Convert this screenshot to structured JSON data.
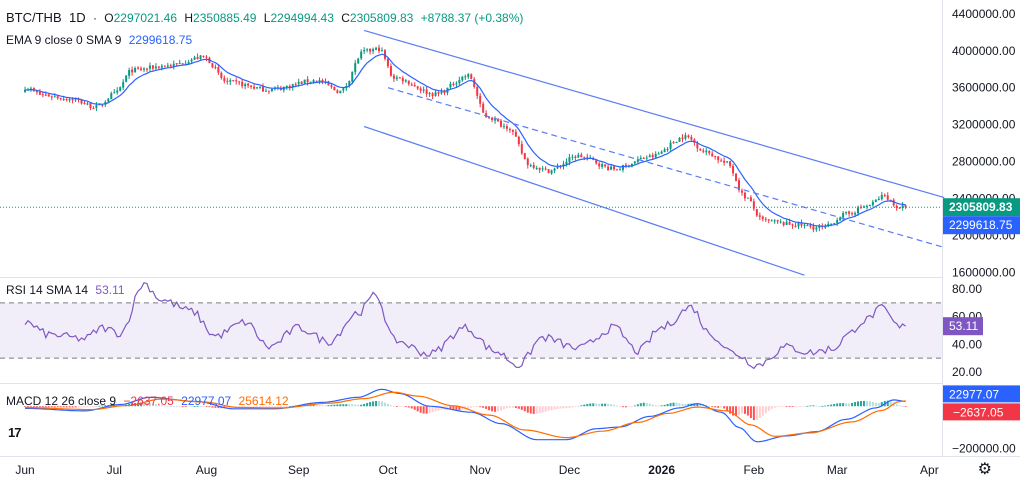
{
  "legend": {
    "symbol": "BTC/THB",
    "interval": "1D",
    "more": "·",
    "o_label": "O",
    "open": "2297021.46",
    "h_label": "H",
    "high": "2350885.49",
    "l_label": "L",
    "low": "2294994.43",
    "c_label": "C",
    "close": "2305809.83",
    "change": "+8788.37 (+0.38%)",
    "ema_label": "EMA 9 close 0 SMA 9",
    "ema_value": "2299618.75"
  },
  "rsi_legend": {
    "label": "RSI 14 SMA 14",
    "value": "53.11"
  },
  "macd_legend": {
    "label": "MACD 12 26 close 9",
    "hist": "−2637.05",
    "macd": "22977.07",
    "signal": "25614.12"
  },
  "logo_text": "17",
  "settings_icon": "gear-icon",
  "colors": {
    "up": "#089981",
    "down": "#f23645",
    "ema": "#2962ff",
    "channel": "#5b7cf5",
    "rsi": "#7e57c2",
    "signal": "#ff6d00"
  },
  "chart_data": [
    {
      "type": "candlestick",
      "title": "BTC/THB 1D",
      "ylim": [
        1550000,
        4550000
      ],
      "y_ticks": [
        1600000,
        2000000,
        2400000,
        2800000,
        3200000,
        3600000,
        4000000,
        4400000
      ],
      "y_tick_labels": [
        "1600000.00",
        "2000000.00",
        "2400000.00",
        "2800000.00",
        "3200000.00",
        "3600000.00",
        "4000000.00",
        "4400000.00"
      ],
      "x_tick_labels": [
        "Jun",
        "Jul",
        "Aug",
        "Sep",
        "Oct",
        "Nov",
        "Dec",
        "2026",
        "Feb",
        "Mar",
        "Apr"
      ],
      "x_tick_days": [
        0,
        30,
        61,
        92,
        122,
        153,
        183,
        214,
        245,
        273,
        304
      ],
      "price_anchors": [
        [
          0,
          3600000
        ],
        [
          6,
          3520000
        ],
        [
          15,
          3480000
        ],
        [
          24,
          3390000
        ],
        [
          30,
          3530000
        ],
        [
          36,
          3790000
        ],
        [
          48,
          3840000
        ],
        [
          60,
          3930000
        ],
        [
          68,
          3660000
        ],
        [
          82,
          3580000
        ],
        [
          98,
          3680000
        ],
        [
          106,
          3560000
        ],
        [
          114,
          3990000
        ],
        [
          119,
          4020000
        ],
        [
          124,
          3710000
        ],
        [
          138,
          3530000
        ],
        [
          149,
          3730000
        ],
        [
          155,
          3290000
        ],
        [
          162,
          3180000
        ],
        [
          170,
          2760000
        ],
        [
          176,
          2700000
        ],
        [
          186,
          2860000
        ],
        [
          198,
          2720000
        ],
        [
          210,
          2850000
        ],
        [
          222,
          3070000
        ],
        [
          229,
          2900000
        ],
        [
          236,
          2780000
        ],
        [
          242,
          2420000
        ],
        [
          248,
          2160000
        ],
        [
          258,
          2120000
        ],
        [
          268,
          2080000
        ],
        [
          276,
          2230000
        ],
        [
          283,
          2320000
        ],
        [
          289,
          2430000
        ],
        [
          293,
          2310000
        ],
        [
          296,
          2305809.83
        ]
      ],
      "last_price": 2305809.83,
      "last_price_label": "2305809.83",
      "ema_value": 2299618.75,
      "ema_label": "2299618.75",
      "channel_upper": {
        "start": [
          114,
          4220000
        ],
        "end": [
          309,
          2410000
        ]
      },
      "channel_mid": {
        "start": [
          122,
          3600000
        ],
        "end": [
          309,
          1870000
        ]
      },
      "channel_lower": {
        "start": [
          114,
          3180000
        ],
        "end": [
          262,
          1570000
        ]
      }
    },
    {
      "type": "line",
      "title": "RSI 14 SMA 14",
      "ylim": [
        12,
        88
      ],
      "y_ticks": [
        20,
        40,
        60,
        80
      ],
      "y_tick_labels": [
        "20.00",
        "40.00",
        "60.00",
        "80.00"
      ],
      "band": [
        30,
        70
      ],
      "rsi_anchors": [
        [
          0,
          56
        ],
        [
          8,
          47
        ],
        [
          20,
          44
        ],
        [
          26,
          52
        ],
        [
          32,
          48
        ],
        [
          40,
          84
        ],
        [
          46,
          72
        ],
        [
          56,
          64
        ],
        [
          64,
          46
        ],
        [
          74,
          56
        ],
        [
          82,
          38
        ],
        [
          92,
          52
        ],
        [
          102,
          42
        ],
        [
          112,
          63
        ],
        [
          118,
          76
        ],
        [
          124,
          43
        ],
        [
          136,
          33
        ],
        [
          148,
          52
        ],
        [
          158,
          35
        ],
        [
          166,
          25
        ],
        [
          174,
          45
        ],
        [
          186,
          37
        ],
        [
          198,
          52
        ],
        [
          206,
          35
        ],
        [
          214,
          52
        ],
        [
          224,
          67
        ],
        [
          230,
          48
        ],
        [
          238,
          34
        ],
        [
          246,
          25
        ],
        [
          256,
          38
        ],
        [
          264,
          34
        ],
        [
          272,
          37
        ],
        [
          276,
          46
        ],
        [
          282,
          57
        ],
        [
          288,
          66
        ],
        [
          294,
          52
        ],
        [
          296,
          53.11
        ]
      ],
      "last_value": 53.11,
      "last_label": "53.11"
    },
    {
      "type": "macd",
      "title": "MACD 12 26 close 9",
      "ylim": [
        -235000,
        105000
      ],
      "y_ticks": [
        -200000
      ],
      "y_tick_labels": [
        "−200000.00"
      ],
      "macd_anchors": [
        [
          0,
          -10000
        ],
        [
          20,
          -22000
        ],
        [
          32,
          8000
        ],
        [
          42,
          42000
        ],
        [
          58,
          22000
        ],
        [
          70,
          -12000
        ],
        [
          84,
          -12000
        ],
        [
          100,
          18000
        ],
        [
          112,
          42000
        ],
        [
          120,
          80000
        ],
        [
          126,
          60000
        ],
        [
          136,
          0
        ],
        [
          150,
          -28000
        ],
        [
          160,
          -82000
        ],
        [
          172,
          -158000
        ],
        [
          182,
          -158000
        ],
        [
          192,
          -106000
        ],
        [
          200,
          -98000
        ],
        [
          210,
          -48000
        ],
        [
          220,
          -8000
        ],
        [
          226,
          12000
        ],
        [
          234,
          -28000
        ],
        [
          240,
          -100000
        ],
        [
          246,
          -168000
        ],
        [
          256,
          -140000
        ],
        [
          266,
          -120000
        ],
        [
          276,
          -62000
        ],
        [
          286,
          -8000
        ],
        [
          292,
          30000
        ],
        [
          296,
          22977.07
        ]
      ],
      "signal_anchors": [
        [
          0,
          -6000
        ],
        [
          22,
          -16000
        ],
        [
          34,
          3000
        ],
        [
          46,
          34000
        ],
        [
          60,
          20000
        ],
        [
          72,
          -6000
        ],
        [
          86,
          -8000
        ],
        [
          102,
          14000
        ],
        [
          114,
          36000
        ],
        [
          124,
          66000
        ],
        [
          132,
          48000
        ],
        [
          144,
          2000
        ],
        [
          156,
          -42000
        ],
        [
          168,
          -112000
        ],
        [
          182,
          -148000
        ],
        [
          194,
          -118000
        ],
        [
          206,
          -76000
        ],
        [
          216,
          -34000
        ],
        [
          226,
          -4000
        ],
        [
          236,
          -22000
        ],
        [
          244,
          -88000
        ],
        [
          252,
          -142000
        ],
        [
          264,
          -126000
        ],
        [
          278,
          -74000
        ],
        [
          288,
          -20000
        ],
        [
          294,
          22000
        ],
        [
          296,
          25614.12
        ]
      ],
      "macd_last": 22977.07,
      "macd_last_label": "22977.07",
      "hist_last": -2637.05,
      "hist_last_label": "−2637.05"
    }
  ]
}
